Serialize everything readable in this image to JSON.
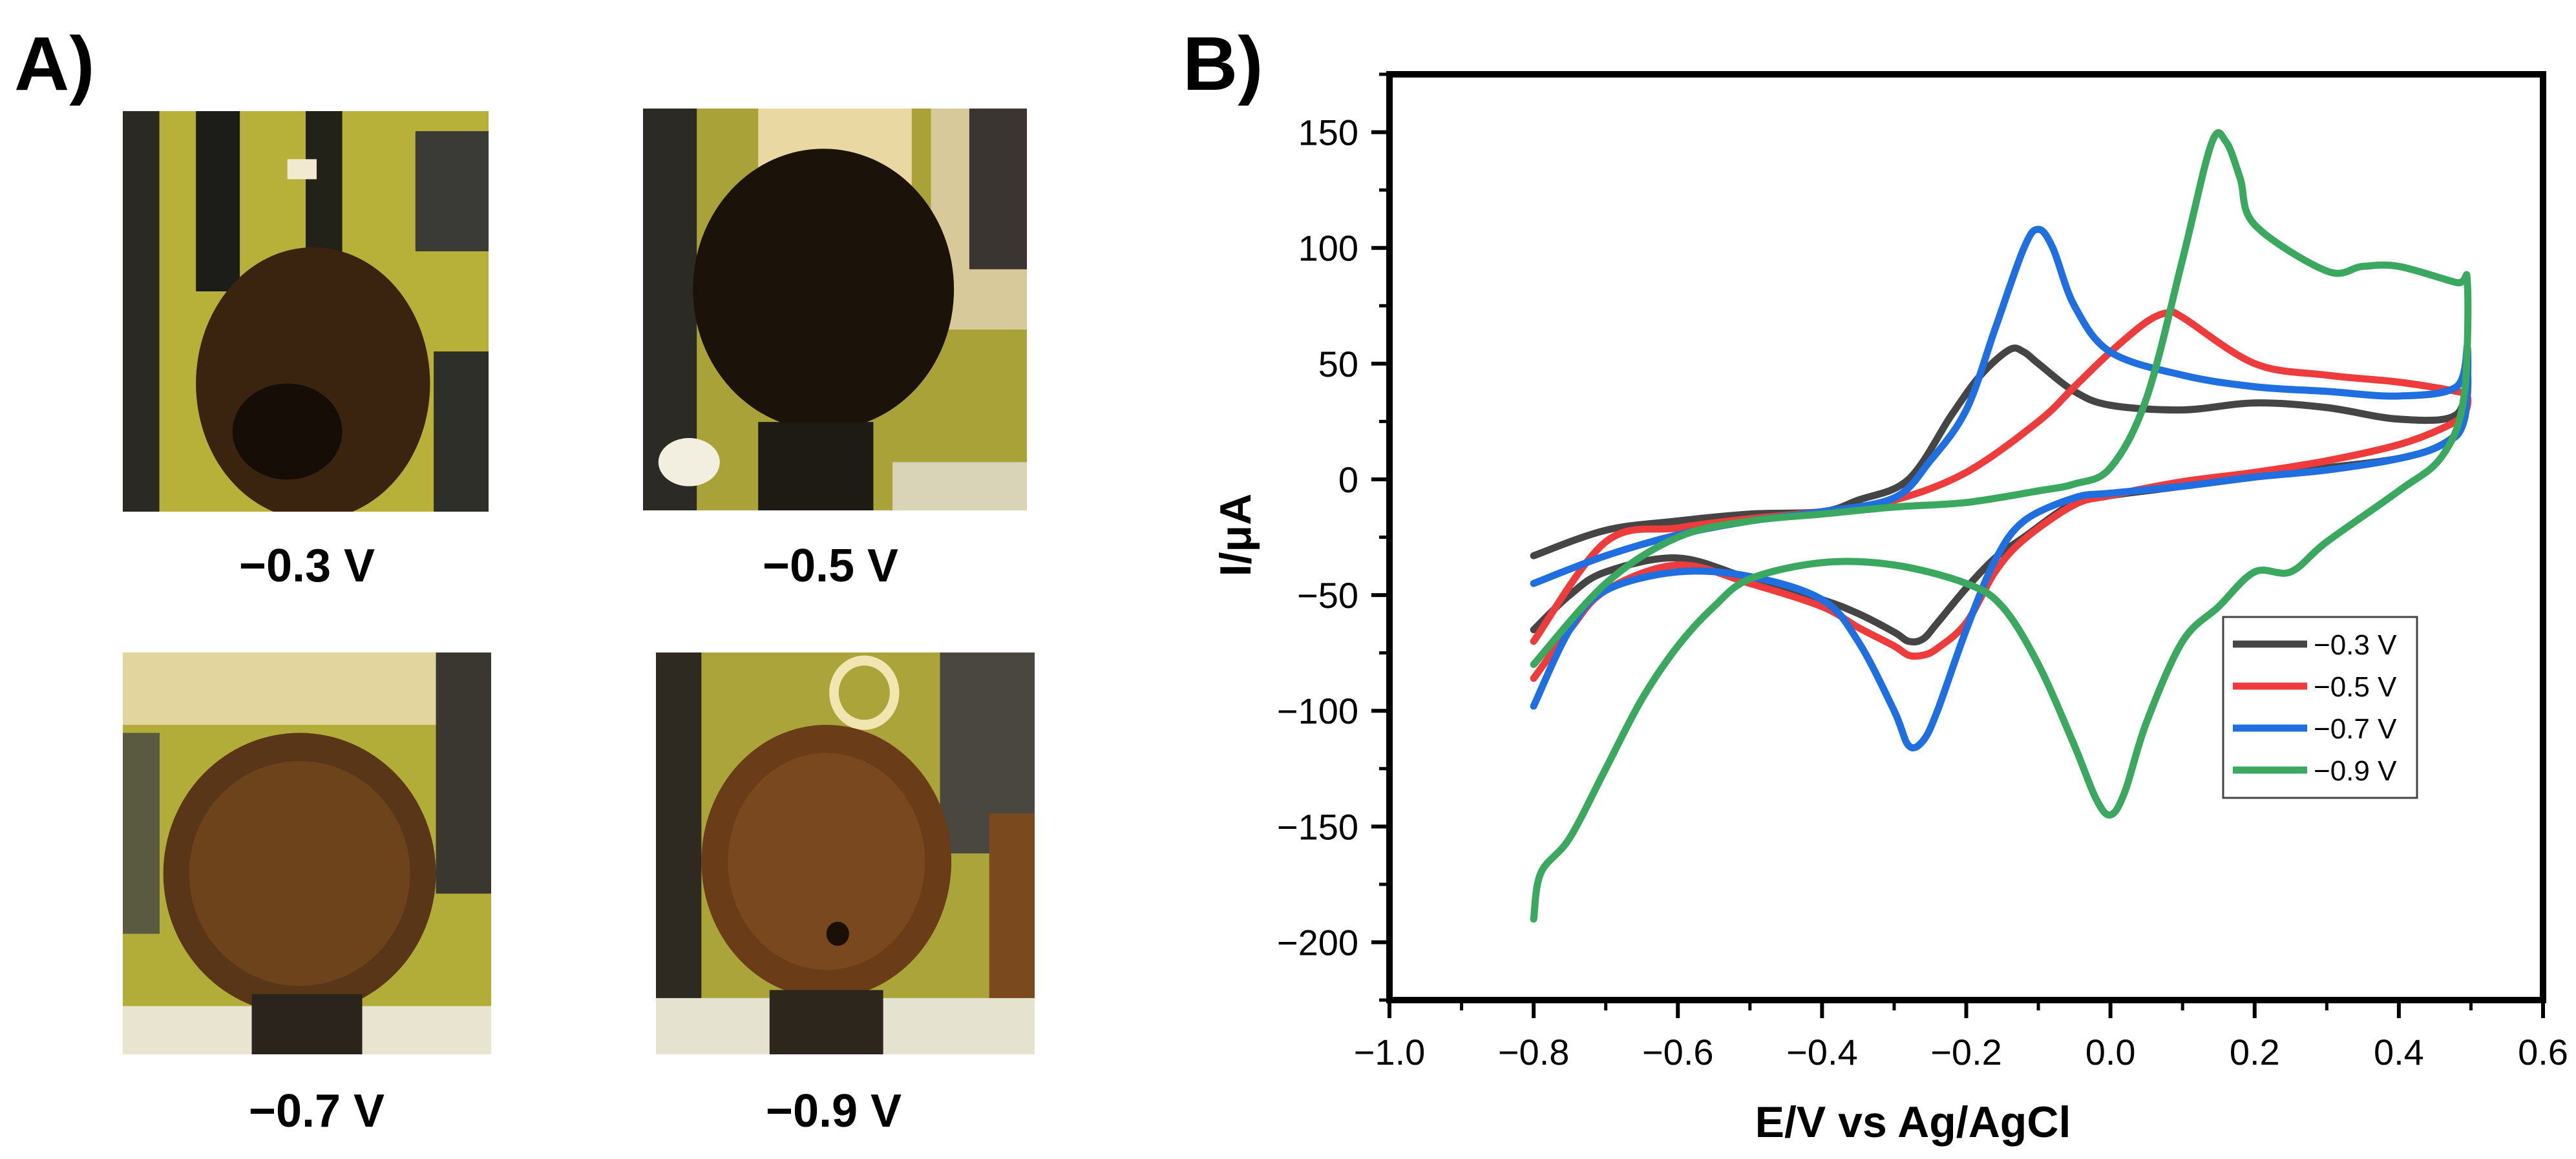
{
  "panel_a": {
    "label": "A)",
    "photos": [
      {
        "caption": "−0.3 V"
      },
      {
        "caption": "−0.5 V"
      },
      {
        "caption": "−0.7 V"
      },
      {
        "caption": "−0.9 V"
      }
    ]
  },
  "panel_b": {
    "label": "B)"
  },
  "colors": {
    "s03": "#454545",
    "s05": "#ee3b3b",
    "s07": "#1f6fe0",
    "s09": "#3aa85e",
    "photo_bg": "#b7b13a",
    "deposit": "#3a2410"
  },
  "chart_data": {
    "type": "line",
    "title": "",
    "xlabel": "E/V vs Ag/AgCl",
    "ylabel": "I/μA",
    "xlim": [
      -1.0,
      0.6
    ],
    "ylim": [
      -225,
      175
    ],
    "xticks": [
      -1.0,
      -0.8,
      -0.6,
      -0.4,
      -0.2,
      0.0,
      0.2,
      0.4,
      0.6
    ],
    "xtick_labels": [
      "−1.0",
      "−0.8",
      "−0.6",
      "−0.4",
      "−0.2",
      "0.0",
      "0.2",
      "0.4",
      "0.6"
    ],
    "yticks": [
      -200,
      -150,
      -100,
      -50,
      0,
      50,
      100,
      150
    ],
    "ytick_labels": [
      "−200",
      "−150",
      "−100",
      "−50",
      "0",
      "50",
      "100",
      "150"
    ],
    "legend_position": "center-right",
    "series": [
      {
        "name": "−0.3 V",
        "color_key": "s03",
        "x": [
          -0.8,
          -0.75,
          -0.7,
          -0.6,
          -0.5,
          -0.4,
          -0.35,
          -0.3,
          -0.28,
          -0.26,
          -0.24,
          -0.2,
          -0.16,
          -0.12,
          -0.05,
          0.0,
          0.1,
          0.2,
          0.3,
          0.4,
          0.46,
          0.49,
          0.495,
          0.48,
          0.4,
          0.3,
          0.2,
          0.1,
          0.0,
          -0.05,
          -0.1,
          -0.12,
          -0.14,
          -0.18,
          -0.22,
          -0.28,
          -0.35,
          -0.4,
          -0.5,
          -0.6,
          -0.7,
          -0.8
        ],
        "y": [
          -65,
          -50,
          -40,
          -34,
          -43,
          -52,
          -58,
          -66,
          -70,
          -69,
          -62,
          -47,
          -34,
          -25,
          -10,
          -7,
          -3,
          1,
          5,
          9,
          15,
          25,
          47,
          28,
          26,
          31,
          33,
          30,
          32,
          38,
          50,
          55,
          56,
          45,
          28,
          0,
          -9,
          -14,
          -15,
          -18,
          -22,
          -33
        ]
      },
      {
        "name": "−0.5 V",
        "color_key": "s05",
        "x": [
          -0.8,
          -0.75,
          -0.7,
          -0.6,
          -0.5,
          -0.4,
          -0.35,
          -0.3,
          -0.28,
          -0.26,
          -0.24,
          -0.2,
          -0.16,
          -0.12,
          -0.05,
          0.0,
          0.1,
          0.2,
          0.3,
          0.4,
          0.46,
          0.49,
          0.495,
          0.48,
          0.4,
          0.3,
          0.2,
          0.1,
          0.08,
          0.05,
          0.0,
          -0.05,
          -0.1,
          -0.2,
          -0.3,
          -0.4,
          -0.5,
          -0.6,
          -0.7,
          -0.8
        ],
        "y": [
          -86,
          -65,
          -48,
          -37,
          -45,
          -55,
          -64,
          -72,
          -76,
          -76,
          -73,
          -62,
          -40,
          -26,
          -11,
          -7,
          -1,
          3,
          8,
          15,
          22,
          28,
          36,
          38,
          42,
          45,
          50,
          70,
          72,
          68,
          55,
          40,
          25,
          3,
          -9,
          -14,
          -17,
          -21,
          -27,
          -70
        ]
      },
      {
        "name": "−0.7 V",
        "color_key": "s07",
        "x": [
          -0.8,
          -0.75,
          -0.7,
          -0.6,
          -0.5,
          -0.4,
          -0.35,
          -0.3,
          -0.28,
          -0.26,
          -0.24,
          -0.2,
          -0.16,
          -0.12,
          -0.05,
          0.0,
          0.1,
          0.2,
          0.3,
          0.4,
          0.46,
          0.49,
          0.495,
          0.48,
          0.4,
          0.3,
          0.2,
          0.1,
          0.0,
          -0.05,
          -0.08,
          -0.1,
          -0.12,
          -0.16,
          -0.2,
          -0.25,
          -0.3,
          -0.4,
          -0.5,
          -0.6,
          -0.7,
          -0.8
        ],
        "y": [
          -98,
          -65,
          -48,
          -40,
          -42,
          -52,
          -70,
          -100,
          -115,
          -113,
          -100,
          -65,
          -35,
          -18,
          -8,
          -6,
          -3,
          1,
          4,
          9,
          15,
          25,
          57,
          40,
          36,
          38,
          40,
          45,
          55,
          75,
          100,
          108,
          100,
          65,
          30,
          8,
          -8,
          -14,
          -18,
          -24,
          -33,
          -45
        ]
      },
      {
        "name": "−0.9 V",
        "color_key": "s09",
        "x": [
          -0.8,
          -0.79,
          -0.75,
          -0.7,
          -0.65,
          -0.6,
          -0.55,
          -0.5,
          -0.4,
          -0.3,
          -0.2,
          -0.15,
          -0.1,
          -0.05,
          -0.02,
          0.0,
          0.02,
          0.05,
          0.1,
          0.15,
          0.2,
          0.25,
          0.3,
          0.4,
          0.46,
          0.49,
          0.495,
          0.48,
          0.4,
          0.35,
          0.3,
          0.2,
          0.18,
          0.16,
          0.14,
          0.1,
          0.05,
          0.0,
          -0.05,
          -0.1,
          -0.2,
          -0.3,
          -0.4,
          -0.5,
          -0.6,
          -0.7,
          -0.8
        ],
        "y": [
          -190,
          -170,
          -155,
          -125,
          -95,
          -72,
          -55,
          -43,
          -36,
          -37,
          -45,
          -55,
          -80,
          -115,
          -138,
          -145,
          -135,
          -105,
          -70,
          -55,
          -40,
          -40,
          -27,
          -5,
          10,
          35,
          85,
          85,
          92,
          92,
          90,
          110,
          130,
          146,
          145,
          95,
          35,
          5,
          -2,
          -5,
          -10,
          -12,
          -15,
          -18,
          -25,
          -45,
          -80
        ]
      }
    ]
  }
}
